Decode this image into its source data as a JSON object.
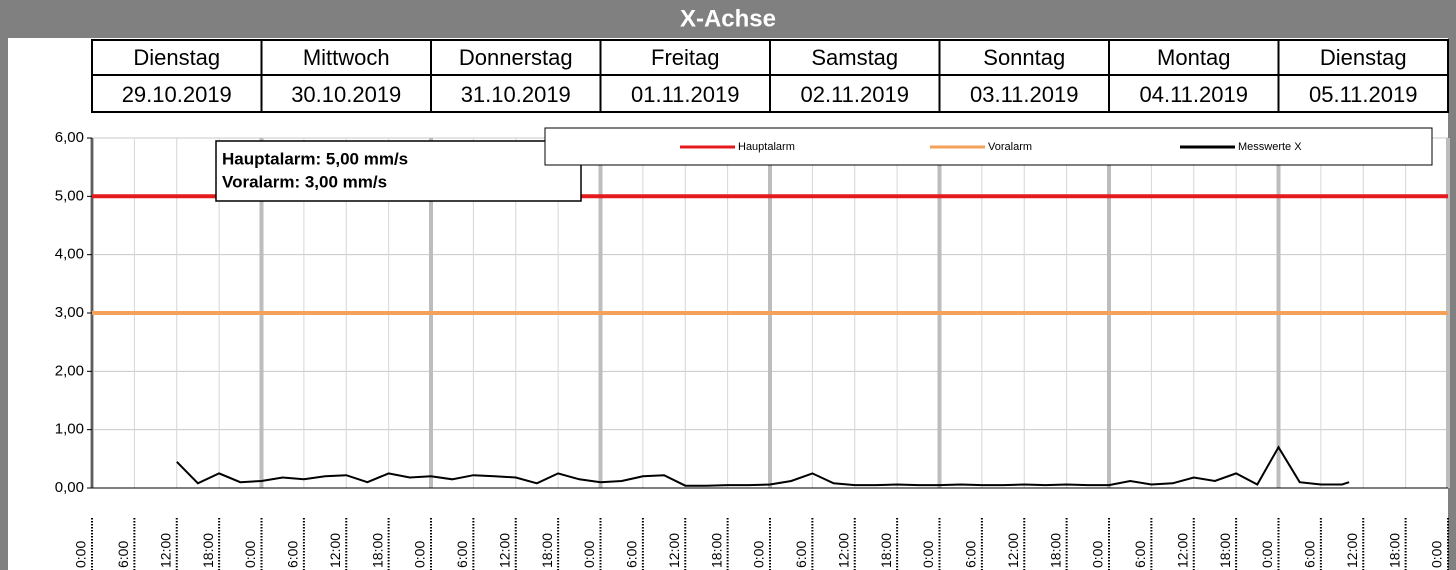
{
  "chart_data": {
    "type": "line",
    "title": "X-Achse",
    "days": [
      {
        "weekday": "Dienstag",
        "date": "29.10.2019"
      },
      {
        "weekday": "Mittwoch",
        "date": "30.10.2019"
      },
      {
        "weekday": "Donnerstag",
        "date": "31.10.2019"
      },
      {
        "weekday": "Freitag",
        "date": "01.11.2019"
      },
      {
        "weekday": "Samstag",
        "date": "02.11.2019"
      },
      {
        "weekday": "Sonntag",
        "date": "03.11.2019"
      },
      {
        "weekday": "Montag",
        "date": "04.11.2019"
      },
      {
        "weekday": "Dienstag",
        "date": "05.11.2019"
      }
    ],
    "annotation": [
      "Hauptalarm: 5,00 mm/s",
      "Voralarm: 3,00 mm/s"
    ],
    "legend": "top-right",
    "grid": true,
    "ylim": [
      0,
      6
    ],
    "yticks": [
      {
        "value": 0,
        "label": "0,00"
      },
      {
        "value": 1,
        "label": "1,00"
      },
      {
        "value": 2,
        "label": "2,00"
      },
      {
        "value": 3,
        "label": "3,00"
      },
      {
        "value": 4,
        "label": "4,00"
      },
      {
        "value": 5,
        "label": "5,00"
      },
      {
        "value": 6,
        "label": "6,00"
      }
    ],
    "xlim": [
      "29.10.2019 00:00",
      "06.11.2019 00:00"
    ],
    "xticks": [
      {
        "value": "29.10.2019 00:00",
        "label": "0:00"
      },
      {
        "value": "29.10.2019 06:00",
        "label": "6:00"
      },
      {
        "value": "29.10.2019 12:00",
        "label": "12:00"
      },
      {
        "value": "29.10.2019 18:00",
        "label": "18:00"
      },
      {
        "value": "30.10.2019 00:00",
        "label": "0:00"
      },
      {
        "value": "30.10.2019 06:00",
        "label": "6:00"
      },
      {
        "value": "30.10.2019 12:00",
        "label": "12:00"
      },
      {
        "value": "30.10.2019 18:00",
        "label": "18:00"
      },
      {
        "value": "31.10.2019 00:00",
        "label": "0:00"
      },
      {
        "value": "31.10.2019 06:00",
        "label": "6:00"
      },
      {
        "value": "31.10.2019 12:00",
        "label": "12:00"
      },
      {
        "value": "31.10.2019 18:00",
        "label": "18:00"
      },
      {
        "value": "01.11.2019 00:00",
        "label": "0:00"
      },
      {
        "value": "01.11.2019 06:00",
        "label": "6:00"
      },
      {
        "value": "01.11.2019 12:00",
        "label": "12:00"
      },
      {
        "value": "01.11.2019 18:00",
        "label": "18:00"
      },
      {
        "value": "02.11.2019 00:00",
        "label": "0:00"
      },
      {
        "value": "02.11.2019 06:00",
        "label": "6:00"
      },
      {
        "value": "02.11.2019 12:00",
        "label": "12:00"
      },
      {
        "value": "02.11.2019 18:00",
        "label": "18:00"
      },
      {
        "value": "03.11.2019 00:00",
        "label": "0:00"
      },
      {
        "value": "03.11.2019 06:00",
        "label": "6:00"
      },
      {
        "value": "03.11.2019 12:00",
        "label": "12:00"
      },
      {
        "value": "03.11.2019 18:00",
        "label": "18:00"
      },
      {
        "value": "04.11.2019 00:00",
        "label": "0:00"
      },
      {
        "value": "04.11.2019 06:00",
        "label": "6:00"
      },
      {
        "value": "04.11.2019 12:00",
        "label": "12:00"
      },
      {
        "value": "04.11.2019 18:00",
        "label": "18:00"
      },
      {
        "value": "05.11.2019 00:00",
        "label": "0:00"
      },
      {
        "value": "05.11.2019 06:00",
        "label": "6:00"
      },
      {
        "value": "05.11.2019 12:00",
        "label": "12:00"
      },
      {
        "value": "05.11.2019 18:00",
        "label": "18:00"
      },
      {
        "value": "06.11.2019 00:00",
        "label": "0:00"
      }
    ],
    "series": [
      {
        "name": "Hauptalarm",
        "color": "#e41a1c",
        "x": [
          "29.10.2019 00:00",
          "06.11.2019 00:00"
        ],
        "values": [
          5,
          5
        ]
      },
      {
        "name": "Voralarm",
        "color": "#f4a259",
        "x": [
          "29.10.2019 00:00",
          "06.11.2019 00:00"
        ],
        "values": [
          3,
          3
        ]
      },
      {
        "name": "Messwerte X",
        "color": "#000000",
        "x": [
          "29.10.2019 12:00",
          "29.10.2019 15:00",
          "29.10.2019 18:00",
          "29.10.2019 21:00",
          "30.10.2019 00:00",
          "30.10.2019 03:00",
          "30.10.2019 06:00",
          "30.10.2019 09:00",
          "30.10.2019 12:00",
          "30.10.2019 15:00",
          "30.10.2019 18:00",
          "30.10.2019 21:00",
          "31.10.2019 00:00",
          "31.10.2019 03:00",
          "31.10.2019 06:00",
          "31.10.2019 09:00",
          "31.10.2019 12:00",
          "31.10.2019 15:00",
          "31.10.2019 18:00",
          "31.10.2019 21:00",
          "01.11.2019 00:00",
          "01.11.2019 03:00",
          "01.11.2019 06:00",
          "01.11.2019 09:00",
          "01.11.2019 12:00",
          "01.11.2019 15:00",
          "01.11.2019 18:00",
          "01.11.2019 21:00",
          "02.11.2019 00:00",
          "02.11.2019 03:00",
          "02.11.2019 06:00",
          "02.11.2019 09:00",
          "02.11.2019 12:00",
          "02.11.2019 15:00",
          "02.11.2019 18:00",
          "02.11.2019 21:00",
          "03.11.2019 00:00",
          "03.11.2019 03:00",
          "03.11.2019 06:00",
          "03.11.2019 09:00",
          "03.11.2019 12:00",
          "03.11.2019 15:00",
          "03.11.2019 18:00",
          "03.11.2019 21:00",
          "04.11.2019 00:00",
          "04.11.2019 03:00",
          "04.11.2019 06:00",
          "04.11.2019 09:00",
          "04.11.2019 12:00",
          "04.11.2019 15:00",
          "04.11.2019 18:00",
          "04.11.2019 21:00",
          "05.11.2019 00:00",
          "05.11.2019 03:00",
          "05.11.2019 06:00",
          "05.11.2019 09:00",
          "05.11.2019 10:00"
        ],
        "values": [
          0.45,
          0.08,
          0.25,
          0.1,
          0.12,
          0.18,
          0.15,
          0.2,
          0.22,
          0.1,
          0.25,
          0.18,
          0.2,
          0.15,
          0.22,
          0.2,
          0.18,
          0.08,
          0.25,
          0.15,
          0.1,
          0.12,
          0.2,
          0.22,
          0.04,
          0.04,
          0.05,
          0.05,
          0.06,
          0.12,
          0.25,
          0.08,
          0.05,
          0.05,
          0.06,
          0.05,
          0.05,
          0.06,
          0.05,
          0.05,
          0.06,
          0.05,
          0.06,
          0.05,
          0.05,
          0.12,
          0.06,
          0.08,
          0.18,
          0.12,
          0.25,
          0.06,
          0.7,
          0.1,
          0.06,
          0.06,
          0.1
        ]
      }
    ]
  }
}
